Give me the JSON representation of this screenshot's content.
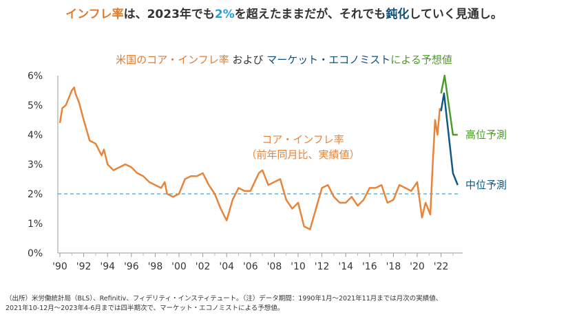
{
  "headline": {
    "p1": "インフレ率",
    "p2": "は、2023年でも",
    "p3": "2%",
    "p4": "を超えたままだが、それでも",
    "p5": "鈍化",
    "p6": "していく見通し。"
  },
  "chart_data": {
    "type": "line",
    "title_parts": {
      "a": "米国のコア・インフレ率",
      "b": " および ",
      "c": "マーケット・エコノミスト",
      "d": "による予想値"
    },
    "ylim": [
      0,
      6
    ],
    "yticks": [
      "0%",
      "1%",
      "2%",
      "3%",
      "4%",
      "5%",
      "6%"
    ],
    "xlim": [
      1990,
      2023.6
    ],
    "xticks": [
      "'90",
      "'92",
      "'94",
      "'96",
      "'98",
      "'00",
      "'02",
      "'04",
      "'06",
      "'08",
      "'10",
      "'12",
      "'14",
      "'16",
      "'18",
      "'20",
      "'22"
    ],
    "reference_line": 2,
    "annotation": {
      "line1": "コア・インフレ率",
      "line2": "（前年同月比、実績値）"
    },
    "colors": {
      "actual": "#e8843a",
      "high": "#4d9a2a",
      "mid": "#0e5a85",
      "ref": "#3aa7d6"
    },
    "series": [
      {
        "name": "コア・インフレ率（実績値）",
        "x": [
          1990,
          1990.2,
          1990.5,
          1990.8,
          1991,
          1991.2,
          1991.3,
          1991.6,
          1992,
          1992.5,
          1993,
          1993.5,
          1993.7,
          1994,
          1994.5,
          1995,
          1995.5,
          1996,
          1996.5,
          1997,
          1997.5,
          1998,
          1998.5,
          1998.8,
          1999,
          1999.5,
          2000,
          2000.5,
          2001,
          2001.5,
          2002,
          2002.5,
          2003,
          2003.5,
          2004,
          2004.5,
          2005,
          2005.5,
          2006,
          2006.7,
          2007,
          2007.5,
          2008,
          2008.5,
          2009,
          2009.5,
          2010,
          2010.5,
          2011,
          2011.5,
          2012,
          2012.5,
          2013,
          2013.5,
          2014,
          2014.5,
          2015,
          2015.5,
          2016,
          2016.5,
          2017,
          2017.5,
          2018,
          2018.5,
          2019,
          2019.5,
          2020,
          2020.4,
          2020.7,
          2021.1,
          2021.3,
          2021.5,
          2021.7,
          2021.9
        ],
        "y": [
          4.4,
          4.9,
          5.0,
          5.3,
          5.5,
          5.6,
          5.4,
          5.1,
          4.5,
          3.8,
          3.7,
          3.3,
          3.5,
          3.0,
          2.8,
          2.9,
          3.0,
          2.9,
          2.7,
          2.6,
          2.4,
          2.3,
          2.2,
          2.4,
          2.0,
          1.9,
          2.0,
          2.5,
          2.6,
          2.6,
          2.7,
          2.3,
          2.0,
          1.5,
          1.1,
          1.8,
          2.2,
          2.1,
          2.1,
          2.7,
          2.8,
          2.3,
          2.4,
          2.5,
          1.8,
          1.5,
          1.7,
          0.9,
          0.8,
          1.5,
          2.2,
          2.3,
          1.9,
          1.7,
          1.7,
          1.9,
          1.6,
          1.8,
          2.2,
          2.2,
          2.3,
          1.7,
          1.8,
          2.3,
          2.2,
          2.1,
          2.4,
          1.2,
          1.7,
          1.3,
          3.0,
          4.5,
          4.0,
          4.9
        ]
      },
      {
        "name": "高位予測",
        "x": [
          2022.0,
          2022.3,
          2023.0,
          2023.4
        ],
        "y": [
          5.4,
          6.0,
          4.0,
          4.0
        ]
      },
      {
        "name": "中位予測",
        "x": [
          2022.0,
          2022.25,
          2023.0,
          2023.4
        ],
        "y": [
          4.8,
          5.4,
          2.7,
          2.3
        ]
      }
    ]
  },
  "footnote": {
    "line1": "（出所）米労働統計局（BLS）、Refinitiv、フィデリティ・インスティテュート。（注）データ期間：1990年1月～2021年11月までは月次の実績値、",
    "line2": "2021年10-12月～2023年4-6月までは四半期次で、マーケット・エコノミストによる予想値。"
  }
}
